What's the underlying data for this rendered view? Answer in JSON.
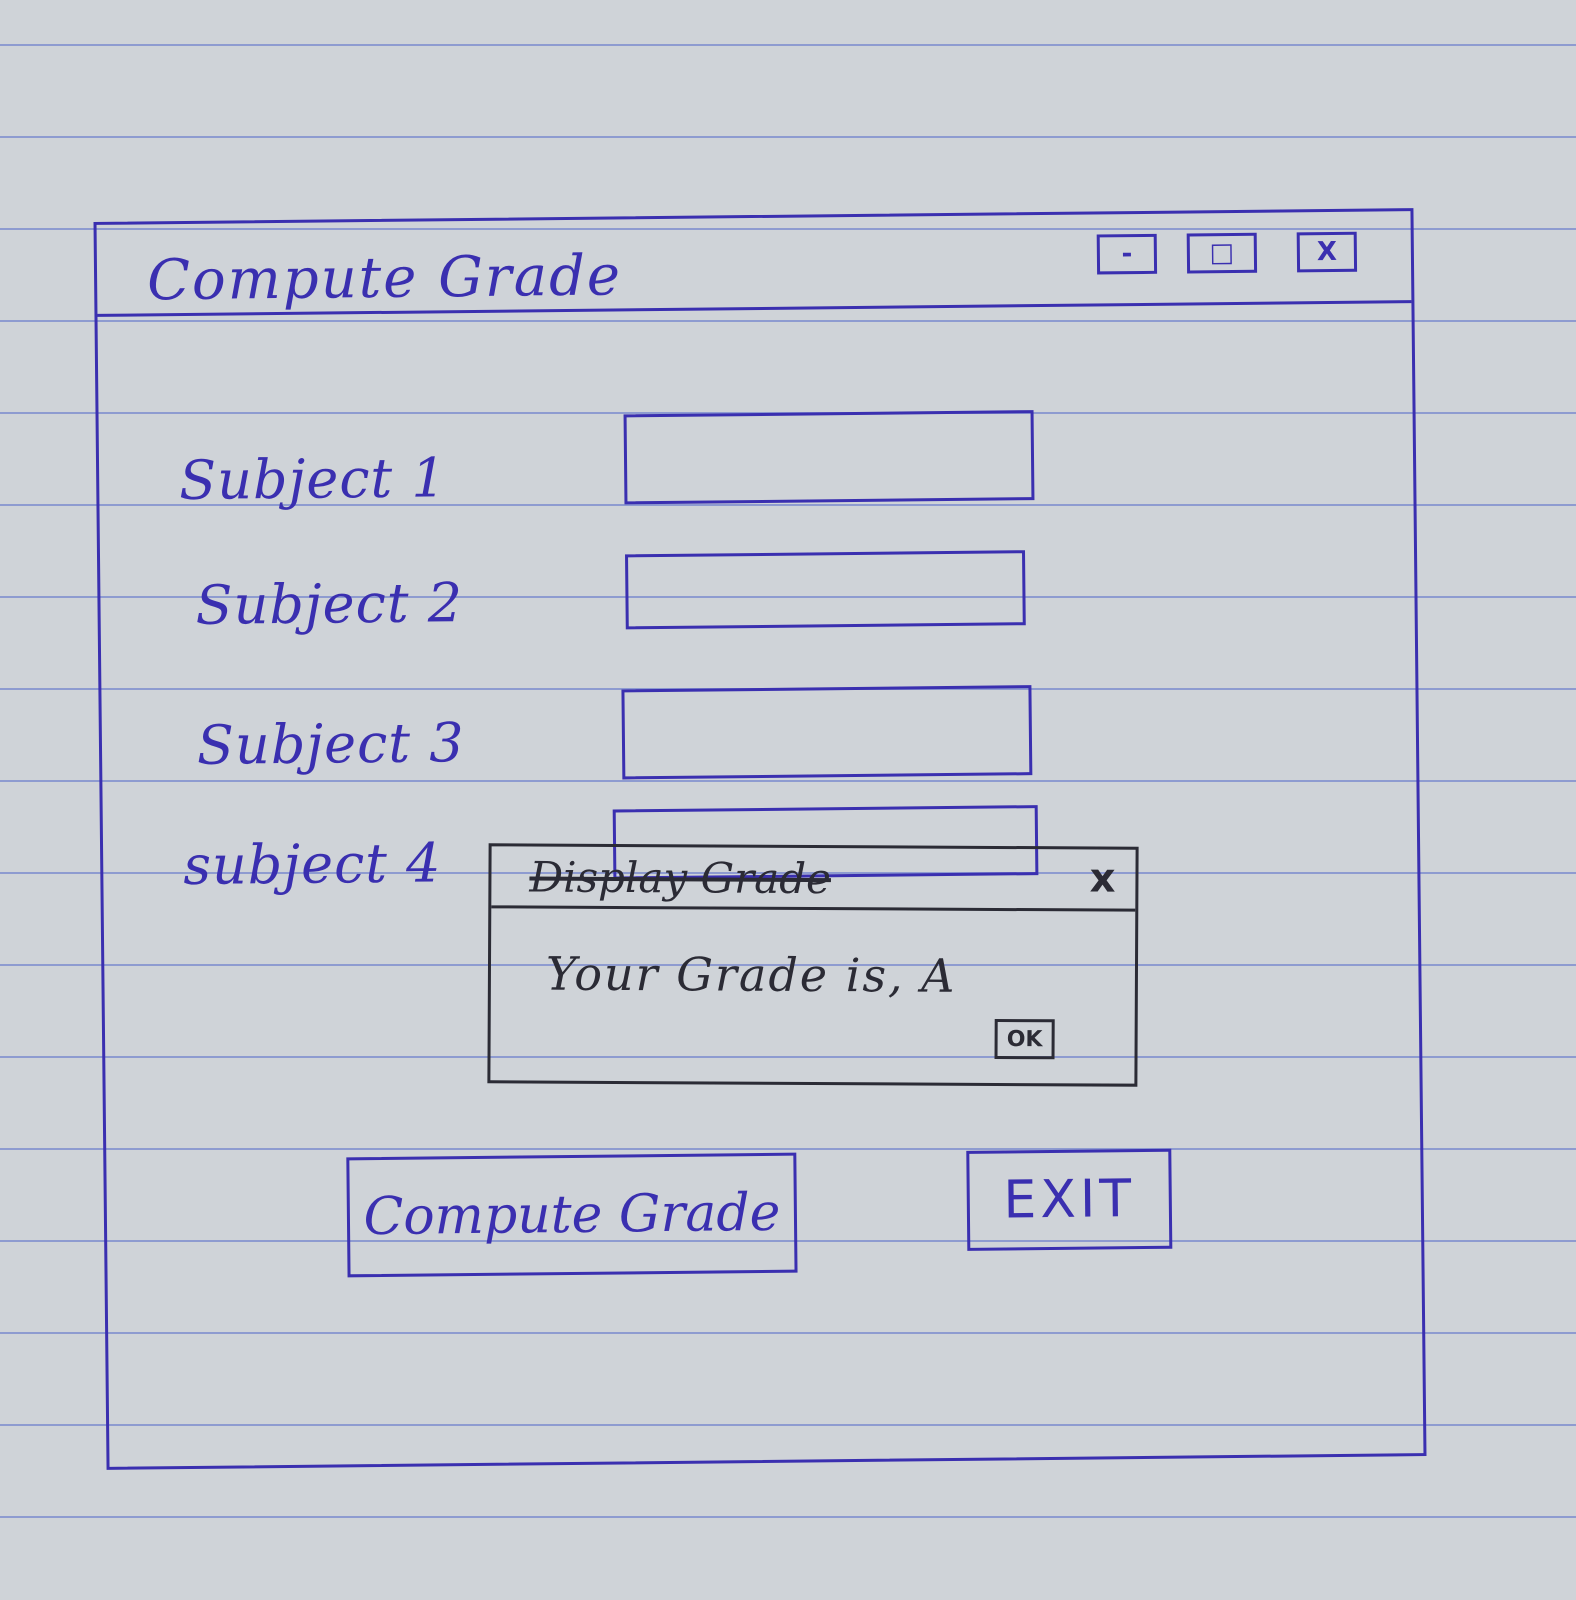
{
  "window": {
    "title": "Compute Grade",
    "controls": {
      "minimize": "-",
      "maximize": "□",
      "close": "X"
    }
  },
  "form": {
    "fields": [
      {
        "label": "Subject 1",
        "value": ""
      },
      {
        "label": "Subject 2",
        "value": ""
      },
      {
        "label": "Subject 3",
        "value": ""
      },
      {
        "label": "subject 4",
        "value": ""
      }
    ]
  },
  "buttons": {
    "compute": "Compute Grade",
    "exit": "EXIT"
  },
  "dialog": {
    "title": "Display Grade",
    "close": "x",
    "message": "Your Grade is, A",
    "ok": "OK"
  },
  "colors": {
    "ink": "#3a2fb0",
    "dialog_ink": "#2b2b35",
    "paper": "#cfd3d8",
    "ruling": "#8e9bd0"
  }
}
